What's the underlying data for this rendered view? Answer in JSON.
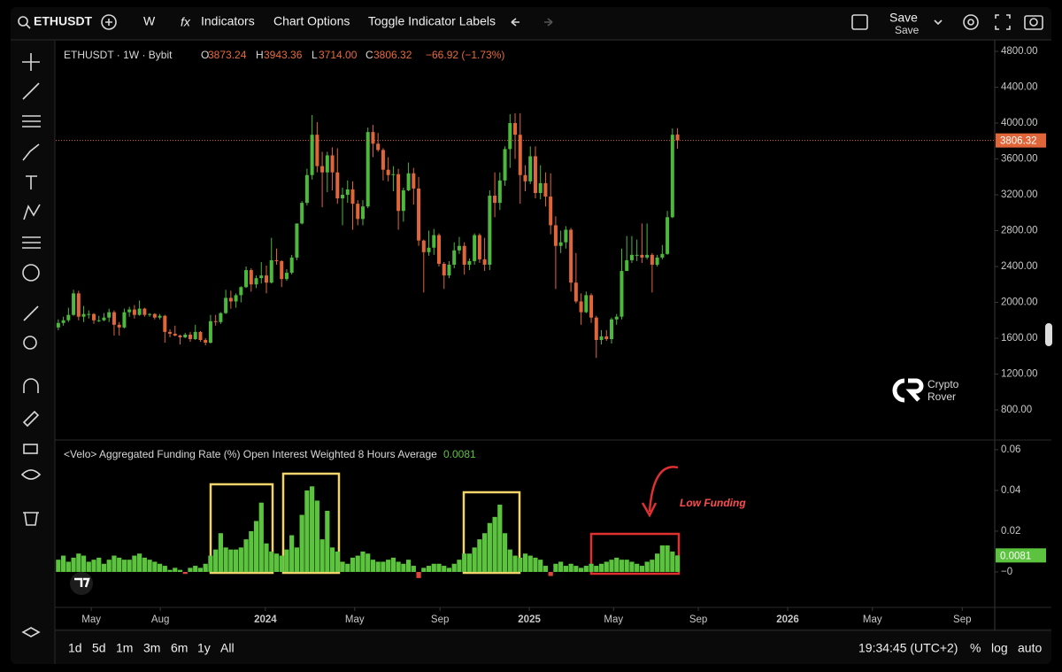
{
  "toolbar": {
    "symbol": "ETHUSDT",
    "interval": "W",
    "indicators": "Indicators",
    "chart_options": "Chart Options",
    "toggle_labels": "Toggle Indicator Labels",
    "save": "Save",
    "save_sub": "Save"
  },
  "watermark": [
    "Crypto",
    "Rover"
  ],
  "ranges": [
    "1d",
    "5d",
    "1m",
    "3m",
    "6m",
    "1y",
    "All"
  ],
  "footer": {
    "clock": "19:34:45 (UTC+2)",
    "percent": "%",
    "log": "log",
    "auto": "auto"
  },
  "chart_data": [
    {
      "type": "candlestick",
      "title": "ETHUSDT · 1W · Bybit",
      "legend": {
        "items": [
          {
            "key": "O",
            "value": "3873.24"
          },
          {
            "key": "H",
            "value": "3943.36"
          },
          {
            "key": "L",
            "value": "3714.00"
          },
          {
            "key": "C",
            "value": "3806.32"
          }
        ],
        "change": "−66.92 (−1.73%)"
      },
      "up_color": "#4cb83c",
      "down_color": "#e0663a",
      "last_price_label": "3806.32",
      "open": [
        1720,
        1770,
        1800,
        1860,
        2100,
        1840,
        1870,
        1870,
        1800,
        1800,
        1830,
        1890,
        1750,
        1720,
        1890,
        1920,
        1860,
        1930,
        1860,
        1870,
        1830,
        1850,
        1670,
        1650,
        1630,
        1610,
        1640,
        1590,
        1670,
        1580,
        1550,
        1790,
        1780,
        1880,
        2050,
        2010,
        2080,
        2170,
        2360,
        2200,
        2270,
        2300,
        2220,
        2470,
        2460,
        2260,
        2330,
        2500,
        2880,
        3110,
        3420,
        3870,
        3520,
        3450,
        3640,
        3450,
        3160,
        3200,
        3260,
        3100,
        2930,
        3070,
        3900,
        3770,
        3700,
        3480,
        3420,
        3430,
        3020,
        3250,
        3440,
        3270,
        2690,
        2560,
        2610,
        2750,
        2430,
        2300,
        2420,
        2580,
        2630,
        2420,
        2460,
        2750,
        2480,
        2420,
        3190,
        3110,
        3360,
        3710,
        4000,
        3870,
        3420,
        3350,
        3630,
        3220,
        3330,
        3180,
        2860,
        2630,
        2670,
        2810,
        2220,
        2010,
        1890,
        2080,
        1830,
        1580,
        1620,
        1590,
        1810,
        1840,
        2350,
        2470,
        2530,
        2530,
        2500,
        2530,
        2420,
        2500,
        2540,
        2950,
        3873.24
      ],
      "high": [
        1810,
        1840,
        1940,
        2140,
        2130,
        1960,
        1910,
        1880,
        1850,
        1880,
        1930,
        1910,
        1780,
        1930,
        1950,
        1970,
        2020,
        1940,
        1880,
        1880,
        1870,
        1860,
        1700,
        1740,
        1640,
        1660,
        1670,
        1750,
        1680,
        1600,
        1860,
        1860,
        1890,
        2140,
        2130,
        2100,
        2180,
        2400,
        2380,
        2300,
        2450,
        2410,
        2720,
        2600,
        2470,
        2370,
        2530,
        2880,
        3130,
        3490,
        4090,
        4010,
        3680,
        3680,
        3730,
        3720,
        3280,
        3360,
        3350,
        3140,
        3140,
        3950,
        3980,
        3890,
        3720,
        3620,
        3520,
        3490,
        3280,
        3560,
        3500,
        3400,
        2700,
        2800,
        2820,
        2770,
        2450,
        2460,
        2670,
        2730,
        2670,
        2490,
        2770,
        2770,
        2720,
        3250,
        3450,
        3450,
        3740,
        4100,
        4110,
        4110,
        3530,
        3740,
        3740,
        3530,
        3450,
        3440,
        2960,
        2800,
        2850,
        2830,
        2550,
        2100,
        2120,
        2100,
        1850,
        1690,
        1690,
        1830,
        1870,
        2600,
        2740,
        2740,
        2700,
        2880,
        2880,
        2550,
        2530,
        2640,
        3020,
        3940,
        3943.36
      ],
      "low": [
        1690,
        1740,
        1780,
        1850,
        1800,
        1780,
        1820,
        1760,
        1780,
        1790,
        1780,
        1630,
        1630,
        1710,
        1840,
        1820,
        1850,
        1840,
        1840,
        1810,
        1810,
        1550,
        1610,
        1620,
        1530,
        1600,
        1560,
        1580,
        1560,
        1520,
        1540,
        1740,
        1760,
        1870,
        1930,
        1940,
        2000,
        2160,
        2120,
        2160,
        2210,
        2100,
        2210,
        2420,
        2170,
        2240,
        2310,
        2470,
        2870,
        3080,
        3370,
        3450,
        3060,
        3230,
        3250,
        3100,
        2860,
        3110,
        2810,
        2860,
        2860,
        3050,
        3620,
        3680,
        3360,
        3350,
        3240,
        2810,
        2900,
        3240,
        3090,
        2630,
        2110,
        2520,
        2530,
        2400,
        2150,
        2270,
        2380,
        2540,
        2310,
        2360,
        2420,
        2440,
        2350,
        2360,
        2950,
        3030,
        3300,
        3500,
        3600,
        3100,
        3240,
        3320,
        3160,
        3150,
        3070,
        2760,
        2150,
        2550,
        2600,
        2120,
        1990,
        1750,
        1880,
        1770,
        1380,
        1530,
        1570,
        1540,
        1750,
        1810,
        2360,
        2440,
        2460,
        2440,
        2480,
        2110,
        2400,
        2480,
        2530,
        2940,
        3714.0
      ],
      "close": [
        1770,
        1800,
        1860,
        2100,
        1840,
        1870,
        1870,
        1800,
        1800,
        1830,
        1890,
        1750,
        1720,
        1890,
        1920,
        1860,
        1930,
        1860,
        1870,
        1830,
        1850,
        1670,
        1650,
        1630,
        1610,
        1640,
        1590,
        1670,
        1580,
        1550,
        1790,
        1780,
        1880,
        2050,
        2010,
        2080,
        2170,
        2360,
        2200,
        2270,
        2300,
        2220,
        2470,
        2460,
        2260,
        2330,
        2500,
        2880,
        3110,
        3420,
        3870,
        3520,
        3450,
        3640,
        3450,
        3160,
        3200,
        3260,
        3100,
        2930,
        3070,
        3900,
        3770,
        3700,
        3480,
        3420,
        3430,
        3020,
        3250,
        3440,
        3270,
        2690,
        2560,
        2610,
        2750,
        2430,
        2300,
        2420,
        2580,
        2630,
        2420,
        2460,
        2750,
        2480,
        2420,
        3190,
        3110,
        3360,
        3710,
        4000,
        3870,
        3420,
        3350,
        3630,
        3220,
        3330,
        3180,
        2860,
        2630,
        2670,
        2810,
        2220,
        2010,
        1890,
        2080,
        1830,
        1580,
        1620,
        1590,
        1810,
        1840,
        2350,
        2470,
        2530,
        2530,
        2500,
        2530,
        2420,
        2500,
        2540,
        2950,
        3870,
        3806.32
      ],
      "ylim": [
        464,
        4909
      ],
      "yticks": [
        {
          "value": 800,
          "label": "800.00"
        },
        {
          "value": 1200,
          "label": "1200.00"
        },
        {
          "value": 1600,
          "label": "1600.00"
        },
        {
          "value": 2000,
          "label": "2000.00"
        },
        {
          "value": 2400,
          "label": "2400.00"
        },
        {
          "value": 2800,
          "label": "2800.00"
        },
        {
          "value": 3200,
          "label": "3200.00"
        },
        {
          "value": 3600,
          "label": "3600.00"
        },
        {
          "value": 4000,
          "label": "4000.00"
        },
        {
          "value": 4400,
          "label": "4400.00"
        },
        {
          "value": 4800,
          "label": "4800.00"
        }
      ],
      "xlim": [
        -0.5,
        184.5
      ],
      "xticks": [
        {
          "value": 6.5,
          "label": "May"
        },
        {
          "value": 20.1,
          "label": "Aug"
        },
        {
          "value": 40.8,
          "label": "2024"
        },
        {
          "value": 58.4,
          "label": "May"
        },
        {
          "value": 75.2,
          "label": "Sep"
        },
        {
          "value": 92.8,
          "label": "2025"
        },
        {
          "value": 109.4,
          "label": "May"
        },
        {
          "value": 126.1,
          "label": "Sep"
        },
        {
          "value": 143.7,
          "label": "2026"
        },
        {
          "value": 160.4,
          "label": "May"
        },
        {
          "value": 178.1,
          "label": "Sep"
        }
      ]
    },
    {
      "type": "bar",
      "title": "<Velo> Aggregated Funding Rate (%) Open Interest Weighted 8 Hours Average",
      "last_value_label": "0.0081",
      "annotation": "Low Funding",
      "color": "#5cc33f",
      "negative_color": "#e0453a",
      "values": [
        0.006,
        0.008,
        0.005,
        0.007,
        0.009,
        0.008,
        0.005,
        0.006,
        0.007,
        0.004,
        0.006,
        0.008,
        0.007,
        0.006,
        0.006,
        0.008,
        0.009,
        0.007,
        0.006,
        0.005,
        0.004,
        0.003,
        0.001,
        0.002,
        0.001,
        -0.001,
        0.002,
        0.003,
        0.002,
        0.004,
        0.008,
        0.011,
        0.019,
        0.012,
        0.011,
        0.011,
        0.012,
        0.016,
        0.02,
        0.025,
        0.034,
        0.014,
        0.01,
        0.009,
        0.008,
        0.011,
        0.018,
        0.012,
        0.028,
        0.04,
        0.042,
        0.035,
        0.016,
        0.03,
        0.012,
        0.01,
        0.005,
        0.004,
        0.007,
        0.008,
        0.01,
        0.009,
        0.006,
        0.005,
        0.005,
        0.006,
        0.007,
        0.005,
        0.004,
        0.006,
        0.003,
        -0.003,
        0.002,
        0.003,
        0.004,
        0.004,
        0.003,
        0.002,
        0.004,
        0.006,
        0.009,
        0.009,
        0.012,
        0.016,
        0.019,
        0.024,
        0.027,
        0.033,
        0.019,
        0.011,
        0.008,
        0.007,
        0.009,
        0.008,
        0.007,
        0.006,
        0.003,
        -0.002,
        0.004,
        0.005,
        0.003,
        0.004,
        0.003,
        0.002,
        0.003,
        0.004,
        0.003,
        0.004,
        0.005,
        0.006,
        0.007,
        0.006,
        0.006,
        0.005,
        0.004,
        0.003,
        0.005,
        0.006,
        0.009,
        0.013,
        0.013,
        0.01,
        0.0081
      ],
      "ylim": [
        -0.0174,
        0.0643
      ],
      "yticks": [
        {
          "value": 0,
          "label": "−0"
        },
        0.02,
        0.04,
        0.06
      ]
    }
  ]
}
